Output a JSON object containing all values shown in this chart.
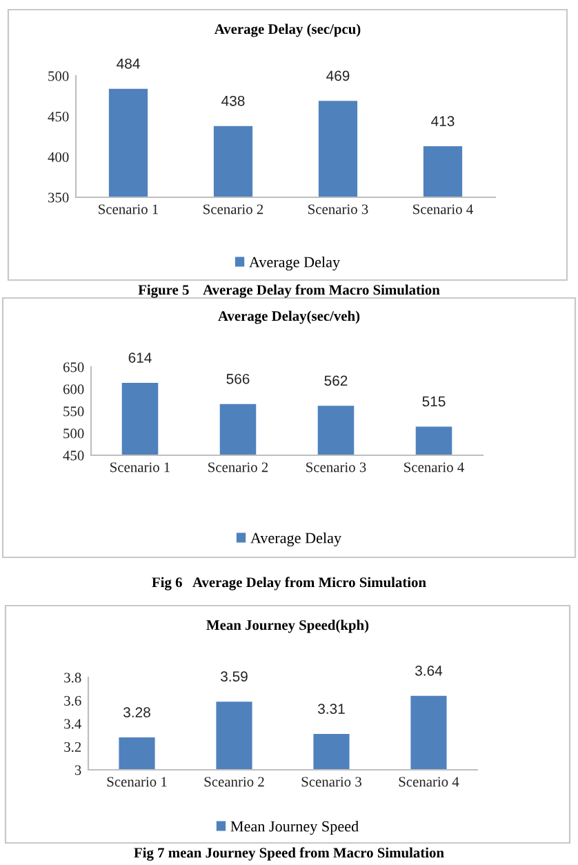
{
  "chart_data": [
    {
      "type": "bar",
      "title": "Average Delay (sec/pcu)",
      "categories": [
        "Scenario 1",
        "Scenario 2",
        "Scenario 3",
        "Scenario 4"
      ],
      "series": [
        {
          "name": "Average Delay",
          "color": "#4f81bd",
          "values": [
            484,
            438,
            469,
            413
          ]
        }
      ],
      "ylim": [
        350,
        500
      ],
      "yticks": [
        350,
        400,
        450,
        500
      ],
      "data_labels": true,
      "legend": "bottom",
      "annotations": [
        "Figure 5    Average Delay from Macro Simulation"
      ]
    },
    {
      "type": "bar",
      "title": "Average Delay(sec/veh)",
      "categories": [
        "Scenario 1",
        "Scenario 2",
        "Scenario 3",
        "Scenario 4"
      ],
      "series": [
        {
          "name": "Average Delay",
          "color": "#4f81bd",
          "values": [
            614,
            566,
            562,
            515
          ]
        }
      ],
      "ylim": [
        450,
        650
      ],
      "yticks": [
        450,
        500,
        550,
        600,
        650
      ],
      "data_labels": true,
      "legend": "bottom",
      "annotations": [
        "Fig 6   Average Delay from Micro Simulation"
      ]
    },
    {
      "type": "bar",
      "title": "Mean Journey Speed(kph)",
      "categories": [
        "Scenario 1",
        "Sceanrio 2",
        "Scenario 3",
        "Scenario 4"
      ],
      "series": [
        {
          "name": "Mean Journey Speed",
          "color": "#4f81bd",
          "values": [
            3.28,
            3.59,
            3.31,
            3.64
          ]
        }
      ],
      "ylim": [
        3,
        3.8
      ],
      "yticks": [
        3,
        3.2,
        3.4,
        3.6,
        3.8
      ],
      "data_labels": true,
      "legend": "bottom",
      "annotations": [
        "Fig 7 mean Journey Speed from Macro Simulation"
      ]
    }
  ]
}
